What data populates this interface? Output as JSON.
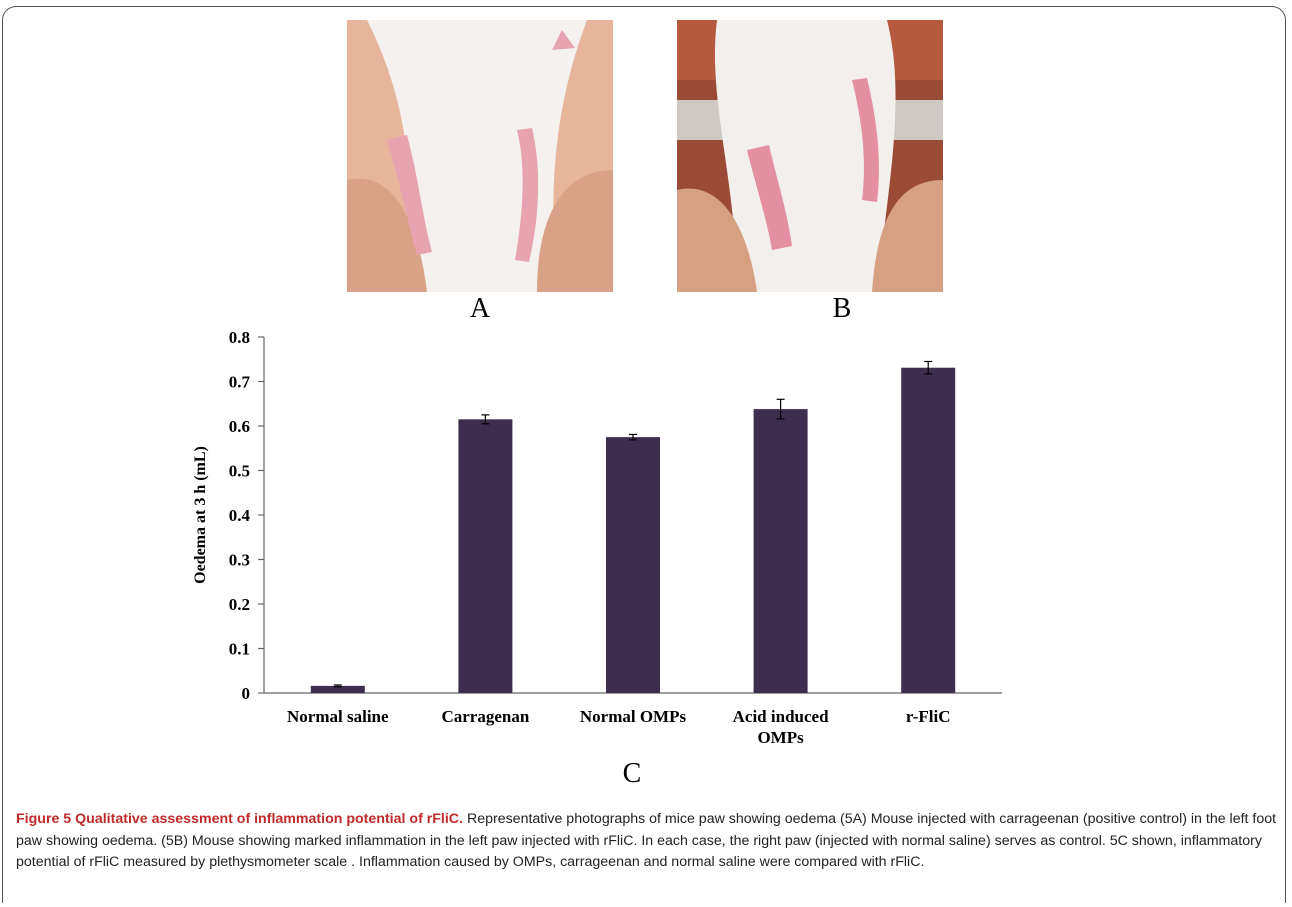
{
  "panels": {
    "a_label": "A",
    "b_label": "B",
    "c_label": "C"
  },
  "chart_data": {
    "type": "bar",
    "title": "",
    "xlabel": "",
    "ylabel": "Oedema at 3 h (mL)",
    "ylim": [
      0,
      0.8
    ],
    "yticks": [
      "0",
      "0.1",
      "0.2",
      "0.3",
      "0.4",
      "0.5",
      "0.6",
      "0.7",
      "0.8"
    ],
    "categories": [
      [
        "Normal saline"
      ],
      [
        "Carragenan"
      ],
      [
        "Normal OMPs"
      ],
      [
        "Acid induced",
        "OMPs"
      ],
      [
        "r-FliC"
      ]
    ],
    "values": [
      0.016,
      0.615,
      0.575,
      0.638,
      0.731
    ],
    "errors": [
      0.002,
      0.01,
      0.006,
      0.022,
      0.014
    ],
    "bar_color": "#3d2d4e",
    "grid": false,
    "legend": "none"
  },
  "caption": {
    "title": "Figure 5 Qualitative assessment of inflammation potential of rFliC.",
    "body": " Representative photographs of mice paw showing oedema (5A) Mouse injected with carrageenan (positive control) in the left foot paw showing oedema. (5B) Mouse showing marked inflammation in the left paw injected with rFliC. In each case, the right paw (injected with normal saline) serves as control. 5C shown, inflammatory potential of rFliC measured by plethysmometer scale . Inflammation caused by OMPs, carrageenan and normal saline were compared with rFliC."
  }
}
